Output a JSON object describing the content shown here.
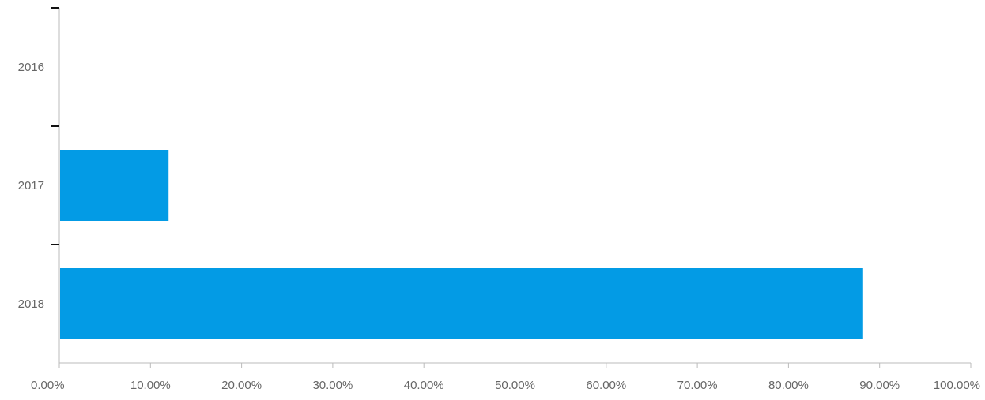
{
  "chart_data": {
    "type": "bar",
    "orientation": "horizontal",
    "categories": [
      "2016",
      "2017",
      "2018"
    ],
    "values": [
      0.0,
      11.9,
      88.1
    ],
    "x_tick_labels": [
      "0.00%",
      "10.00%",
      "20.00%",
      "30.00%",
      "40.00%",
      "50.00%",
      "60.00%",
      "70.00%",
      "80.00%",
      "90.00%",
      "100.00%"
    ],
    "xlim": [
      0,
      100
    ],
    "x_unit": "percent",
    "title": "",
    "xlabel": "",
    "ylabel": "",
    "grid": false,
    "legend": "none",
    "colors": {
      "bar": "#039be5",
      "axis": "#bbbbbb",
      "tick": "#111111",
      "label": "#666666"
    }
  }
}
